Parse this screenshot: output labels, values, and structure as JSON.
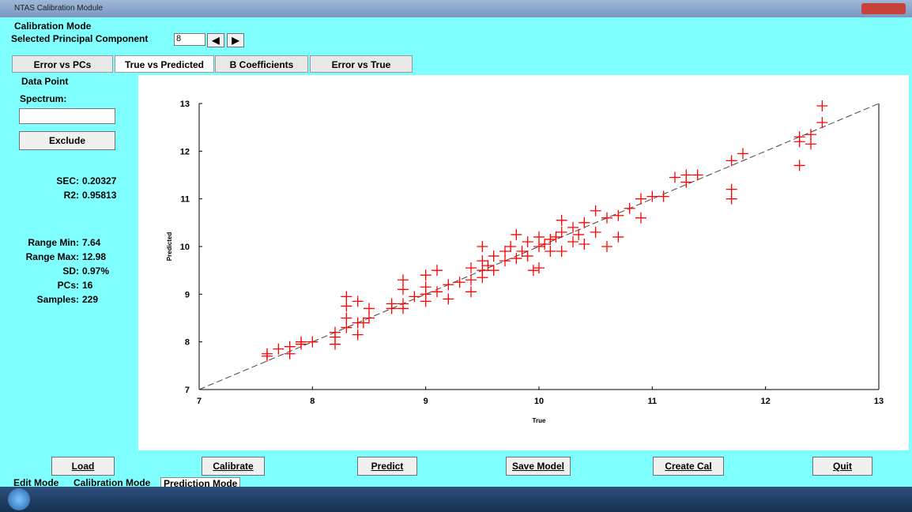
{
  "window": {
    "title": "NTAS Calibration Module"
  },
  "header": {
    "mode": "Calibration Mode",
    "pc_label": "Selected Principal Component",
    "pc_value": "8"
  },
  "tabs": [
    "Error vs PCs",
    "True vs Predicted",
    "B Coefficients",
    "Error vs True"
  ],
  "side_panel": {
    "title": "Data Point",
    "spectrum_label": "Spectrum:",
    "exclude_button": "Exclude",
    "stats": [
      {
        "label": "SEC:",
        "value": "0.20327"
      },
      {
        "label": "R2:",
        "value": "0.95813"
      },
      {
        "label": "Range Min:",
        "value": "7.64"
      },
      {
        "label": "Range Max:",
        "value": "12.98"
      },
      {
        "label": "SD:",
        "value": "0.97%"
      },
      {
        "label": "PCs:",
        "value": "16"
      },
      {
        "label": "Samples:",
        "value": "229"
      }
    ]
  },
  "buttons": [
    "Load",
    "Calibrate",
    "Predict",
    "Save Model",
    "Create Cal",
    "Quit"
  ],
  "mode_tabs": [
    "Edit Mode",
    "Calibration Mode",
    "Prediction Mode"
  ],
  "chart_data": {
    "type": "scatter",
    "x_label": "True",
    "y_label": "Predicted",
    "color": "#ff0000",
    "xlim": [
      7,
      13
    ],
    "ylim": [
      7,
      13
    ],
    "xticks": [
      7,
      8,
      9,
      10,
      11,
      12,
      13
    ],
    "yticks": [
      7,
      8,
      9,
      10,
      11,
      12,
      13
    ],
    "x": [
      7.6,
      7.6,
      7.7,
      7.8,
      7.8,
      7.9,
      8.0,
      7.9,
      8.2,
      8.2,
      8.2,
      8.3,
      8.3,
      8.3,
      8.3,
      8.4,
      8.4,
      8.4,
      8.45,
      8.5,
      8.5,
      8.7,
      8.7,
      8.8,
      8.8,
      8.8,
      8.8,
      8.9,
      9.0,
      9.0,
      9.0,
      9.0,
      9.1,
      9.1,
      9.2,
      9.2,
      9.3,
      9.4,
      9.4,
      9.4,
      9.5,
      9.5,
      9.5,
      9.5,
      9.55,
      9.6,
      9.6,
      9.7,
      9.7,
      9.75,
      9.8,
      9.8,
      9.85,
      9.9,
      9.9,
      9.95,
      10.0,
      10.0,
      10.0,
      10.05,
      10.1,
      10.1,
      10.15,
      10.2,
      10.2,
      10.2,
      10.3,
      10.3,
      10.35,
      10.4,
      10.4,
      10.5,
      10.5,
      10.6,
      10.6,
      10.7,
      10.7,
      10.8,
      10.9,
      10.9,
      11.0,
      11.1,
      11.2,
      11.3,
      11.3,
      11.4,
      11.7,
      11.7,
      11.7,
      11.8,
      12.3,
      12.3,
      12.3,
      12.4,
      12.4,
      12.5,
      12.5
    ],
    "y": [
      7.7,
      7.75,
      7.85,
      7.9,
      7.75,
      8.0,
      8.0,
      7.95,
      8.2,
      7.95,
      8.1,
      8.95,
      8.75,
      8.5,
      8.3,
      8.4,
      8.15,
      8.85,
      8.4,
      8.7,
      8.5,
      8.8,
      8.7,
      9.3,
      9.1,
      8.7,
      8.8,
      8.95,
      9.4,
      9.15,
      8.85,
      9.0,
      9.5,
      9.05,
      9.2,
      8.9,
      9.25,
      9.55,
      9.3,
      9.05,
      10.0,
      9.7,
      9.5,
      9.35,
      9.6,
      9.8,
      9.5,
      9.9,
      9.7,
      10.0,
      10.25,
      9.75,
      9.9,
      10.1,
      9.8,
      9.5,
      10.2,
      10.0,
      9.55,
      10.05,
      9.9,
      10.15,
      10.2,
      10.55,
      10.3,
      9.9,
      10.1,
      10.4,
      10.25,
      10.5,
      10.05,
      10.75,
      10.3,
      10.6,
      10.0,
      10.65,
      10.2,
      10.8,
      11.0,
      10.6,
      11.05,
      11.05,
      11.45,
      11.5,
      11.35,
      11.5,
      11.8,
      11.2,
      11.0,
      11.95,
      12.3,
      12.2,
      11.7,
      12.35,
      12.15,
      12.6,
      12.95
    ]
  }
}
